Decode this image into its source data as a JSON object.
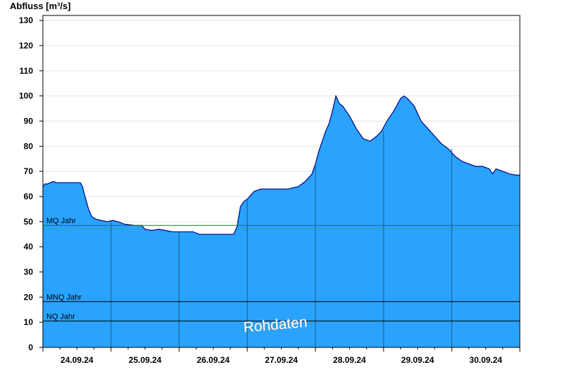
{
  "chart_data": {
    "type": "area",
    "ylabel": "Abfluss [m³/s]",
    "ylim": [
      0,
      132
    ],
    "yticks": [
      0,
      10,
      20,
      30,
      40,
      50,
      60,
      70,
      80,
      90,
      100,
      110,
      120,
      130
    ],
    "xlim_days": [
      0,
      7
    ],
    "day_labels": [
      "24.09.24",
      "25.09.24",
      "26.09.24",
      "27.09.24",
      "28.09.24",
      "29.09.24",
      "30.09.24"
    ],
    "series": [
      {
        "values": [
          [
            0.0,
            64
          ],
          [
            0.03,
            65
          ],
          [
            0.07,
            65
          ],
          [
            0.15,
            66
          ],
          [
            0.2,
            65.5
          ],
          [
            0.4,
            65.5
          ],
          [
            0.55,
            65.5
          ],
          [
            0.58,
            64
          ],
          [
            0.62,
            60
          ],
          [
            0.67,
            55
          ],
          [
            0.72,
            52
          ],
          [
            0.78,
            51
          ],
          [
            0.85,
            50.5
          ],
          [
            0.95,
            50
          ],
          [
            1.02,
            50.5
          ],
          [
            1.1,
            50
          ],
          [
            1.2,
            49
          ],
          [
            1.35,
            48.5
          ],
          [
            1.45,
            48.5
          ],
          [
            1.5,
            47
          ],
          [
            1.6,
            46.5
          ],
          [
            1.7,
            47
          ],
          [
            1.8,
            46.5
          ],
          [
            1.9,
            46
          ],
          [
            2.0,
            46
          ],
          [
            2.2,
            46
          ],
          [
            2.3,
            45
          ],
          [
            2.5,
            45
          ],
          [
            2.8,
            45
          ],
          [
            2.85,
            48
          ],
          [
            2.9,
            56
          ],
          [
            2.95,
            58
          ],
          [
            3.0,
            59
          ],
          [
            3.1,
            62
          ],
          [
            3.2,
            63
          ],
          [
            3.4,
            63
          ],
          [
            3.6,
            63
          ],
          [
            3.75,
            64
          ],
          [
            3.85,
            66
          ],
          [
            3.95,
            69
          ],
          [
            4.0,
            73
          ],
          [
            4.05,
            78
          ],
          [
            4.1,
            82
          ],
          [
            4.15,
            86
          ],
          [
            4.2,
            89
          ],
          [
            4.25,
            94
          ],
          [
            4.3,
            100
          ],
          [
            4.35,
            97
          ],
          [
            4.4,
            96
          ],
          [
            4.5,
            92
          ],
          [
            4.6,
            87
          ],
          [
            4.7,
            83
          ],
          [
            4.8,
            82
          ],
          [
            4.9,
            84
          ],
          [
            4.97,
            86
          ],
          [
            5.05,
            90
          ],
          [
            5.15,
            94
          ],
          [
            5.25,
            99
          ],
          [
            5.3,
            100
          ],
          [
            5.35,
            99
          ],
          [
            5.45,
            96
          ],
          [
            5.55,
            90
          ],
          [
            5.65,
            87
          ],
          [
            5.75,
            84
          ],
          [
            5.85,
            81
          ],
          [
            5.95,
            79
          ],
          [
            6.05,
            76
          ],
          [
            6.15,
            74
          ],
          [
            6.25,
            73
          ],
          [
            6.35,
            72
          ],
          [
            6.45,
            72
          ],
          [
            6.55,
            71
          ],
          [
            6.6,
            69
          ],
          [
            6.65,
            71
          ],
          [
            6.75,
            70
          ],
          [
            6.85,
            69
          ],
          [
            6.95,
            68.5
          ],
          [
            7.0,
            68.5
          ]
        ]
      }
    ],
    "reference_lines": [
      {
        "label": "MQ Jahr",
        "value": 48.5,
        "color": "#1a7a1a"
      },
      {
        "label": "MNQ Jahr",
        "value": 18.2,
        "color": "#000000"
      },
      {
        "label": "NQ Jahr",
        "value": 10.5,
        "color": "#000000"
      }
    ],
    "annotation": "Rohdaten",
    "colors": {
      "area_fill": "#29a3fe",
      "area_line": "#000080",
      "grid": "#e3e3e3",
      "day_separator": "#225577"
    },
    "grid": true
  }
}
